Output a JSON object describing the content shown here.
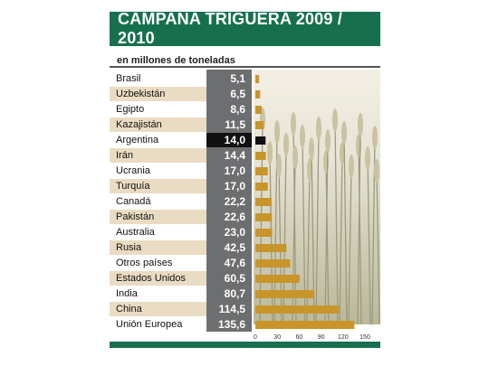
{
  "header": {
    "title": "CAMPAÑA TRIGUERA 2009 / 2010"
  },
  "subtitle": "en millones de toneladas",
  "colors": {
    "header": "#16704e",
    "bar": "#c8952a",
    "highlight_bar": "#111111",
    "value_column": "#6d6e70",
    "row_shade": "#e9dcc2"
  },
  "chart_data": {
    "type": "bar",
    "orientation": "horizontal",
    "categories": [
      "Brasil",
      "Uzbekistán",
      "Egipto",
      "Kazajistán",
      "Argentina",
      "Irán",
      "Ucrania",
      "Turquía",
      "Canadá",
      "Pakistán",
      "Australia",
      "Rusia",
      "Otros países",
      "Estados Unidos",
      "India",
      "China",
      "Unión Europea"
    ],
    "values": [
      5.1,
      6.5,
      8.6,
      11.5,
      14.0,
      14.4,
      17.0,
      17.0,
      22.2,
      22.6,
      23.0,
      42.5,
      47.6,
      60.5,
      80.7,
      114.5,
      135.6
    ],
    "value_labels": [
      "5,1",
      "6,5",
      "8,6",
      "11,5",
      "14,0",
      "14,4",
      "17,0",
      "17,0",
      "22,2",
      "22,6",
      "23,0",
      "42,5",
      "47,6",
      "60,5",
      "80,7",
      "114,5",
      "135,6"
    ],
    "highlight": "Argentina",
    "xlim": [
      0,
      150
    ],
    "xticks": [
      "0",
      "30",
      "60",
      "90",
      "120",
      "150"
    ],
    "xtick_values": [
      0,
      30,
      60,
      90,
      120,
      150
    ],
    "grid": false
  }
}
